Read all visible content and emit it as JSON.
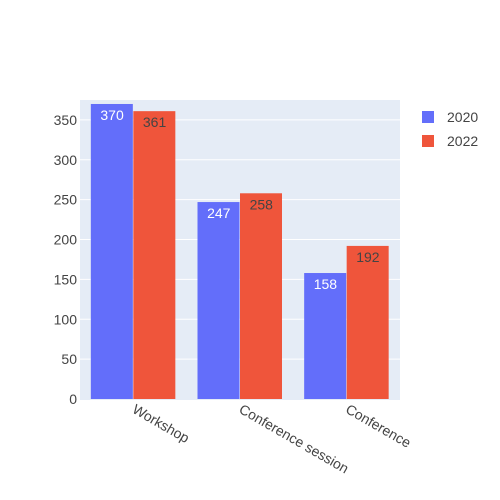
{
  "chart_data": {
    "type": "bar",
    "categories": [
      "Workshop",
      "Conference session",
      "Conference"
    ],
    "series": [
      {
        "name": "2020",
        "values": [
          370,
          247,
          158
        ],
        "color": "#636efa",
        "label_color": "#ffffff"
      },
      {
        "name": "2022",
        "values": [
          361,
          258,
          192
        ],
        "color": "#ef553b",
        "label_color": "#444444"
      }
    ],
    "ylim": [
      0,
      375
    ],
    "yticks": [
      0,
      50,
      100,
      150,
      200,
      250,
      300,
      350
    ],
    "grid": true,
    "legend_position": "top-right",
    "plot_background": "#e5ecf6"
  }
}
